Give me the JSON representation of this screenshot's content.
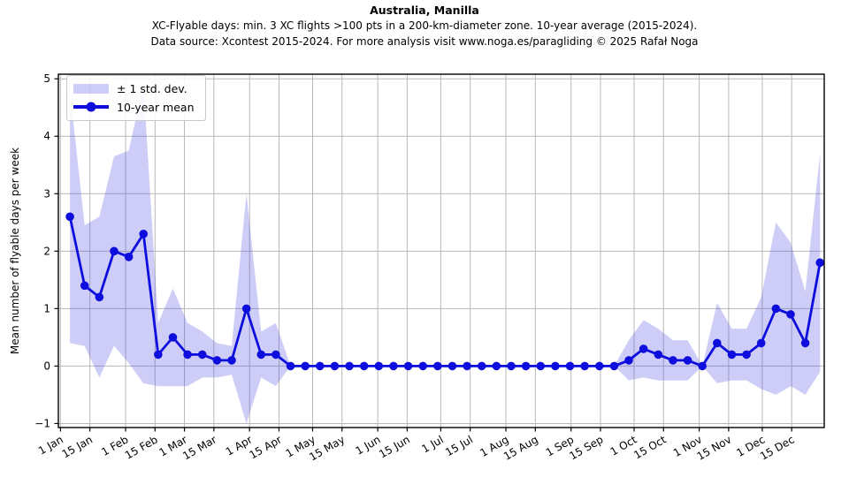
{
  "header": {
    "title": "Australia, Manilla",
    "subtitle1": "XC-Flyable days: min. 3 XC flights >100 pts in a 200-km-diameter zone. 10-year average (2015-2024).",
    "subtitle2": "Data source: Xcontest 2015-2024. For more analysis visit www.noga.es/paragliding © 2025 Rafał Noga"
  },
  "chart_data": {
    "type": "line",
    "title": "Australia, Manilla",
    "ylabel": "Mean number of flyable days per week",
    "legend": [
      "± 1 std. dev.",
      "10-year mean"
    ],
    "legend_position": "upper left",
    "grid": true,
    "x_tick_labels": [
      "1 Jan",
      "15 Jan",
      "1 Feb",
      "15 Feb",
      "1 Mar",
      "15 Mar",
      "1 Apr",
      "15 Apr",
      "1 May",
      "15 May",
      "1 Jun",
      "15 Jun",
      "1 Jul",
      "15 Jul",
      "1 Aug",
      "15 Aug",
      "1 Sep",
      "15 Sep",
      "1 Oct",
      "15 Oct",
      "1 Nov",
      "15 Nov",
      "1 Dec",
      "15 Dec"
    ],
    "x_tick_days": [
      0,
      14,
      31,
      45,
      59,
      73,
      90,
      104,
      120,
      134,
      151,
      165,
      181,
      195,
      212,
      226,
      243,
      257,
      273,
      287,
      304,
      318,
      334,
      348
    ],
    "y_ticks": [
      -1,
      0,
      1,
      2,
      3,
      4,
      5
    ],
    "y_tick_labels": [
      "−1",
      "0",
      "1",
      "2",
      "3",
      "4",
      "5"
    ],
    "ylim": [
      -1.07,
      5.08
    ],
    "xlim_days": [
      -1,
      363.5
    ],
    "x_start_day": 4.5,
    "x_step_days": 7,
    "series": [
      {
        "name": "10-year mean",
        "values": [
          2.6,
          1.4,
          1.2,
          2.0,
          1.9,
          2.3,
          0.2,
          0.5,
          0.2,
          0.2,
          0.1,
          0.1,
          1.0,
          0.2,
          0.2,
          0,
          0,
          0,
          0,
          0,
          0,
          0,
          0,
          0,
          0,
          0,
          0,
          0,
          0,
          0,
          0,
          0,
          0,
          0,
          0,
          0,
          0,
          0,
          0.1,
          0.3,
          0.2,
          0.1,
          0.1,
          0,
          0.4,
          0.2,
          0.2,
          0.4,
          1.0,
          0.9,
          0.4,
          1.8
        ]
      },
      {
        "name": "std dev",
        "values": [
          2.2,
          1.05,
          1.4,
          1.65,
          1.85,
          2.6,
          0.55,
          0.85,
          0.55,
          0.4,
          0.3,
          0.25,
          2.0,
          0.4,
          0.55,
          0,
          0,
          0,
          0,
          0,
          0,
          0,
          0,
          0,
          0,
          0,
          0,
          0,
          0,
          0,
          0,
          0,
          0,
          0,
          0,
          0,
          0,
          0,
          0.35,
          0.5,
          0.45,
          0.35,
          0.35,
          0,
          0.7,
          0.45,
          0.45,
          0.8,
          1.5,
          1.25,
          0.9,
          1.9
        ]
      }
    ],
    "colors": {
      "line": "#0d0ddd",
      "band": "rgba(70,70,225,0.27)",
      "grid": "#b8b8b8",
      "spine": "#000000",
      "text": "#000000"
    }
  }
}
